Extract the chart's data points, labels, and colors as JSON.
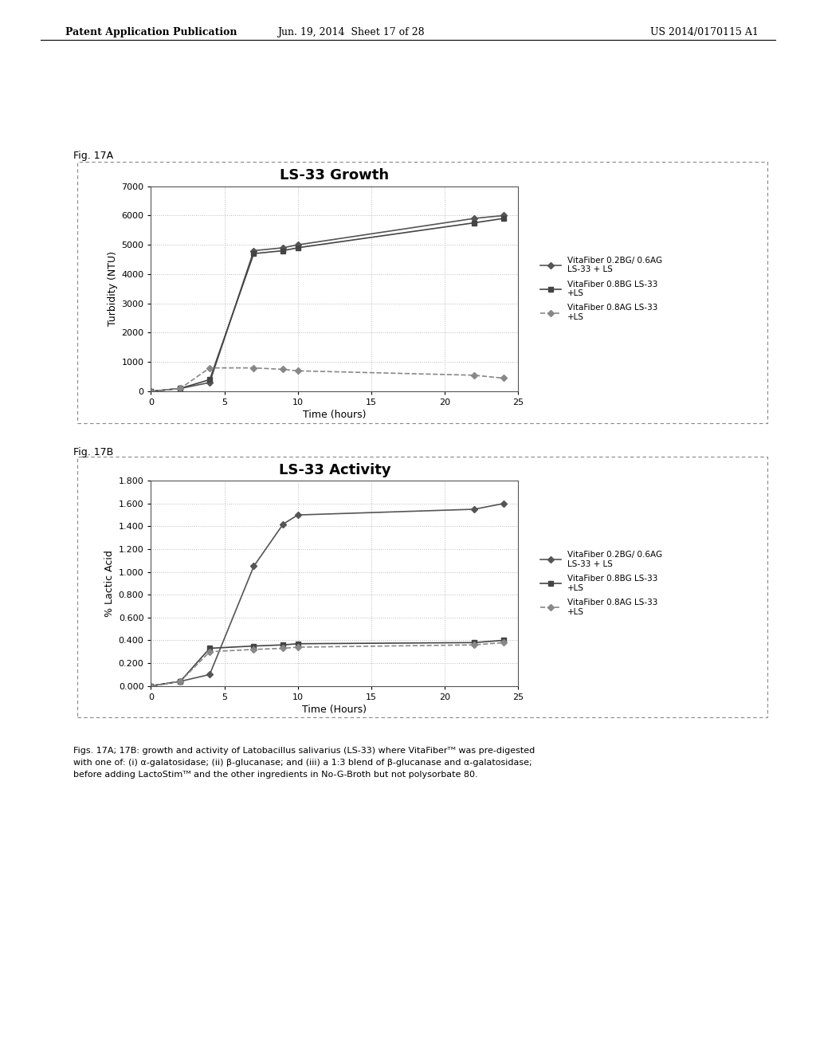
{
  "fig17a": {
    "title": "LS-33 Growth",
    "xlabel": "Time (hours)",
    "ylabel": "Turbidity (NTU)",
    "ylim": [
      0,
      7000
    ],
    "yticks": [
      0,
      1000,
      2000,
      3000,
      4000,
      5000,
      6000,
      7000
    ],
    "xlim": [
      0,
      25
    ],
    "xticks": [
      0,
      5,
      10,
      15,
      20,
      25
    ],
    "series": [
      {
        "label": "VitaFiber 0.2BG/ 0.6AG\nLS-33 + LS",
        "x": [
          0,
          2,
          4,
          7,
          9,
          10,
          22,
          24
        ],
        "y": [
          0,
          100,
          300,
          4800,
          4900,
          5000,
          5900,
          6000
        ],
        "color": "#555555",
        "marker": "D",
        "linestyle": "-",
        "linewidth": 1.2
      },
      {
        "label": "VitaFiber 0.8BG LS-33\n+LS",
        "x": [
          0,
          2,
          4,
          7,
          9,
          10,
          22,
          24
        ],
        "y": [
          0,
          100,
          400,
          4700,
          4800,
          4900,
          5750,
          5900
        ],
        "color": "#444444",
        "marker": "s",
        "linestyle": "-",
        "linewidth": 1.2
      },
      {
        "label": "VitaFiber 0.8AG LS-33\n+LS",
        "x": [
          0,
          2,
          4,
          7,
          9,
          10,
          22,
          24
        ],
        "y": [
          0,
          100,
          800,
          800,
          750,
          700,
          550,
          450
        ],
        "color": "#888888",
        "marker": "D",
        "linestyle": "--",
        "linewidth": 1.2
      }
    ]
  },
  "fig17b": {
    "title": "LS-33 Activity",
    "xlabel": "Time (Hours)",
    "ylabel": "% Lactic Acid",
    "ylim": [
      0.0,
      1.8
    ],
    "yticks": [
      0.0,
      0.2,
      0.4,
      0.6,
      0.8,
      1.0,
      1.2,
      1.4,
      1.6,
      1.8
    ],
    "xlim": [
      0,
      25
    ],
    "xticks": [
      0,
      5,
      10,
      15,
      20,
      25
    ],
    "series": [
      {
        "label": "VitaFiber 0.2BG/ 0.6AG\nLS-33 + LS",
        "x": [
          0,
          2,
          4,
          7,
          9,
          10,
          22,
          24
        ],
        "y": [
          0.0,
          0.04,
          0.1,
          1.05,
          1.42,
          1.5,
          1.55,
          1.6
        ],
        "color": "#555555",
        "marker": "D",
        "linestyle": "-",
        "linewidth": 1.2
      },
      {
        "label": "VitaFiber 0.8BG LS-33\n+LS",
        "x": [
          0,
          2,
          4,
          7,
          9,
          10,
          22,
          24
        ],
        "y": [
          0.0,
          0.04,
          0.33,
          0.35,
          0.36,
          0.37,
          0.38,
          0.4
        ],
        "color": "#444444",
        "marker": "s",
        "linestyle": "-",
        "linewidth": 1.2
      },
      {
        "label": "VitaFiber 0.8AG LS-33\n+LS",
        "x": [
          0,
          2,
          4,
          7,
          9,
          10,
          22,
          24
        ],
        "y": [
          0.0,
          0.04,
          0.3,
          0.32,
          0.33,
          0.34,
          0.36,
          0.38
        ],
        "color": "#888888",
        "marker": "D",
        "linestyle": "--",
        "linewidth": 1.2
      }
    ]
  },
  "header_left": "Patent Application Publication",
  "header_center": "Jun. 19, 2014  Sheet 17 of 28",
  "header_right": "US 2014/0170115 A1",
  "fig17a_label": "Fig. 17A",
  "fig17b_label": "Fig. 17B",
  "background_color": "#ffffff",
  "plot_bg": "#ffffff",
  "border_color": "#888888",
  "grid_color": "#bbbbbb",
  "grid_linestyle": ":"
}
